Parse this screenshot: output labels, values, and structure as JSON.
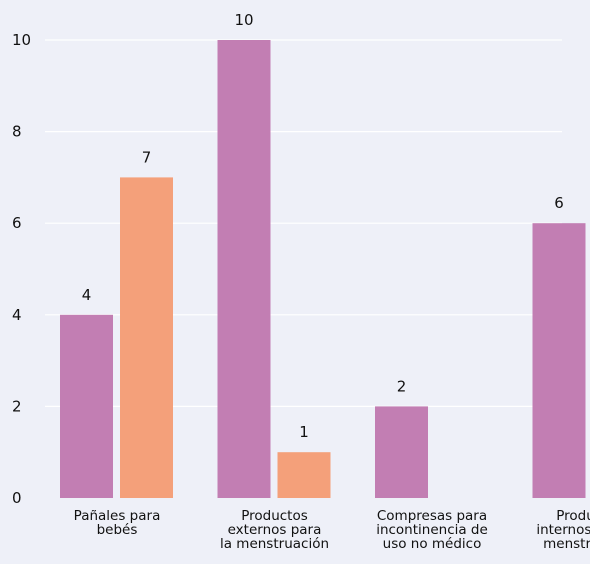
{
  "chart_data": {
    "type": "bar",
    "categories": [
      [
        "Pañales para",
        "bebés"
      ],
      [
        "Productos",
        "externos para",
        "la menstruación"
      ],
      [
        "Compresas para",
        "incontinencia de",
        "uso no médico"
      ],
      [
        "Productos",
        "internos para la",
        "menstruación"
      ]
    ],
    "series": [
      {
        "values": [
          4,
          10,
          2,
          6
        ],
        "color": "#c27eb3"
      },
      {
        "values": [
          7,
          1,
          null,
          null
        ],
        "color": "#f4a07a"
      }
    ],
    "ylim": [
      0,
      10
    ],
    "yticks": [
      0,
      2,
      4,
      6,
      8,
      10
    ],
    "grid": true,
    "gridline_color": "#ffffff",
    "data_labels": true,
    "background": "#eef0f8"
  }
}
